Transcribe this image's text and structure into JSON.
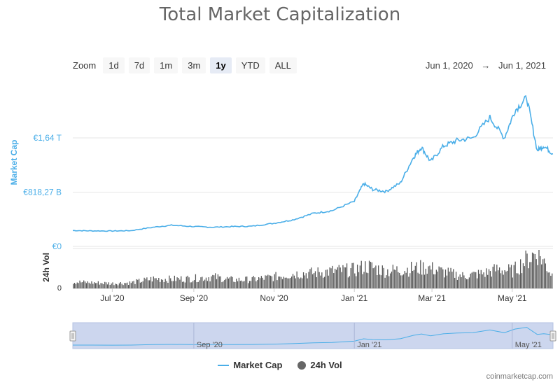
{
  "title": "Total Market Capitalization",
  "zoom": {
    "label": "Zoom",
    "buttons": [
      "1d",
      "7d",
      "1m",
      "3m",
      "1y",
      "YTD",
      "ALL"
    ],
    "active": "1y"
  },
  "range": {
    "from": "Jun 1, 2020",
    "arrow": "→",
    "to": "Jun 1, 2021"
  },
  "legend": {
    "market_cap": "Market Cap",
    "vol": "24h Vol"
  },
  "credit": "coinmarketcap.com",
  "colors": {
    "market_cap": "#4aaee8",
    "volume": "#555555",
    "navigator_fill": "#ccd6ee"
  },
  "chart_data": {
    "type": "line",
    "x_range": [
      "2020-06-01",
      "2021-06-01"
    ],
    "x_ticks": [
      {
        "date": "2020-07-01",
        "label": "Jul '20"
      },
      {
        "date": "2020-09-01",
        "label": "Sep '20"
      },
      {
        "date": "2020-11-01",
        "label": "Nov '20"
      },
      {
        "date": "2021-01-01",
        "label": "Jan '21"
      },
      {
        "date": "2021-03-01",
        "label": "Mar '21"
      },
      {
        "date": "2021-05-01",
        "label": "May '21"
      }
    ],
    "market_cap": {
      "name": "Market Cap",
      "ylabel": "Market Cap",
      "ylim": [
        0,
        2454810000000
      ],
      "y_ticks": [
        {
          "value": 0,
          "label": "€0"
        },
        {
          "value": 818270000000,
          "label": "€818,27 B"
        },
        {
          "value": 1640000000000,
          "label": "€1,64 T"
        }
      ],
      "points": [
        [
          "2020-06-01",
          240000000000
        ],
        [
          "2020-06-15",
          235000000000
        ],
        [
          "2020-07-01",
          233000000000
        ],
        [
          "2020-07-15",
          238000000000
        ],
        [
          "2020-08-01",
          290000000000
        ],
        [
          "2020-08-15",
          320000000000
        ],
        [
          "2020-09-01",
          300000000000
        ],
        [
          "2020-09-15",
          290000000000
        ],
        [
          "2020-10-01",
          300000000000
        ],
        [
          "2020-10-15",
          305000000000
        ],
        [
          "2020-11-01",
          350000000000
        ],
        [
          "2020-11-15",
          400000000000
        ],
        [
          "2020-12-01",
          500000000000
        ],
        [
          "2020-12-15",
          540000000000
        ],
        [
          "2021-01-01",
          680000000000
        ],
        [
          "2021-01-08",
          950000000000
        ],
        [
          "2021-01-15",
          860000000000
        ],
        [
          "2021-01-25",
          830000000000
        ],
        [
          "2021-02-05",
          960000000000
        ],
        [
          "2021-02-15",
          1350000000000
        ],
        [
          "2021-02-21",
          1500000000000
        ],
        [
          "2021-02-28",
          1280000000000
        ],
        [
          "2021-03-10",
          1520000000000
        ],
        [
          "2021-03-20",
          1600000000000
        ],
        [
          "2021-04-01",
          1640000000000
        ],
        [
          "2021-04-14",
          1950000000000
        ],
        [
          "2021-04-25",
          1640000000000
        ],
        [
          "2021-05-03",
          2050000000000
        ],
        [
          "2021-05-12",
          2250000000000
        ],
        [
          "2021-05-20",
          1450000000000
        ],
        [
          "2021-05-25",
          1520000000000
        ],
        [
          "2021-06-01",
          1400000000000
        ]
      ]
    },
    "volume": {
      "name": "24h Vol",
      "ylabel": "24h Vol",
      "y_ticks": [
        {
          "value": 0,
          "label": "0"
        }
      ],
      "points": [
        [
          "2020-06-01",
          0.17
        ],
        [
          "2020-06-15",
          0.15
        ],
        [
          "2020-07-01",
          0.13
        ],
        [
          "2020-07-15",
          0.15
        ],
        [
          "2020-08-01",
          0.25
        ],
        [
          "2020-08-15",
          0.24
        ],
        [
          "2020-09-01",
          0.26
        ],
        [
          "2020-09-15",
          0.3
        ],
        [
          "2020-10-01",
          0.22
        ],
        [
          "2020-10-15",
          0.23
        ],
        [
          "2020-11-01",
          0.3
        ],
        [
          "2020-11-15",
          0.38
        ],
        [
          "2020-12-01",
          0.4
        ],
        [
          "2020-12-15",
          0.45
        ],
        [
          "2021-01-01",
          0.48
        ],
        [
          "2021-01-10",
          0.58
        ],
        [
          "2021-01-25",
          0.45
        ],
        [
          "2021-02-10",
          0.5
        ],
        [
          "2021-02-25",
          0.55
        ],
        [
          "2021-03-10",
          0.42
        ],
        [
          "2021-03-25",
          0.32
        ],
        [
          "2021-04-10",
          0.4
        ],
        [
          "2021-04-20",
          0.5
        ],
        [
          "2021-05-01",
          0.45
        ],
        [
          "2021-05-12",
          0.75
        ],
        [
          "2021-05-20",
          0.95
        ],
        [
          "2021-06-01",
          0.3
        ]
      ]
    },
    "navigator": {
      "x_ticks": [
        {
          "date": "2020-09-01",
          "label": "Sep '20"
        },
        {
          "date": "2021-01-01",
          "label": "Jan '21"
        },
        {
          "date": "2021-05-01",
          "label": "May '21"
        }
      ]
    },
    "grid": true,
    "legend_position": "bottom-center"
  }
}
